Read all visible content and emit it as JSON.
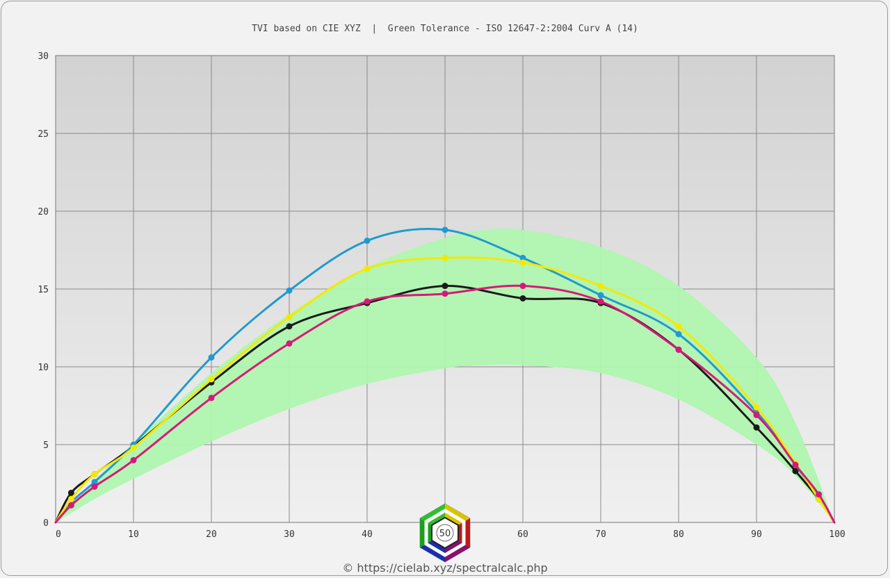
{
  "chart_data": {
    "type": "line",
    "title": "TVI based on CIE XYZ  |  Green Tolerance - ISO 12647-2:2004 Curv A (14)",
    "xlabel": "",
    "ylabel": "",
    "xlim": [
      0,
      100
    ],
    "ylim": [
      0,
      30
    ],
    "x_ticks": [
      "0",
      "10",
      "20",
      "30",
      "40",
      "50",
      "60",
      "70",
      "80",
      "90",
      "100"
    ],
    "y_ticks": [
      "0",
      "5",
      "10",
      "15",
      "20",
      "25",
      "30"
    ],
    "x_tick_values": [
      0,
      10,
      20,
      30,
      40,
      50,
      60,
      70,
      80,
      90,
      100
    ],
    "y_tick_values": [
      0,
      5,
      10,
      15,
      20,
      25,
      30
    ],
    "grid": true,
    "tolerance_band": {
      "color": "#b0f5b0",
      "upper": [
        [
          0,
          0
        ],
        [
          5,
          2.7
        ],
        [
          10,
          5.1
        ],
        [
          20,
          9.6
        ],
        [
          30,
          13.4
        ],
        [
          40,
          16.4
        ],
        [
          50,
          18.3
        ],
        [
          55,
          18.8
        ],
        [
          60,
          18.8
        ],
        [
          70,
          17.7
        ],
        [
          80,
          15.2
        ],
        [
          90,
          10.6
        ],
        [
          95,
          6.4
        ],
        [
          100,
          0
        ]
      ],
      "lower": [
        [
          0,
          0
        ],
        [
          5,
          1.5
        ],
        [
          10,
          2.8
        ],
        [
          20,
          5.2
        ],
        [
          30,
          7.3
        ],
        [
          40,
          8.9
        ],
        [
          50,
          9.9
        ],
        [
          55,
          10.1
        ],
        [
          60,
          10.1
        ],
        [
          70,
          9.6
        ],
        [
          80,
          7.9
        ],
        [
          90,
          5.0
        ],
        [
          95,
          3.0
        ],
        [
          100,
          0
        ]
      ]
    },
    "series": [
      {
        "color": "#1a1a1a",
        "x": [
          0,
          2,
          5,
          10,
          20,
          30,
          40,
          50,
          60,
          70,
          80,
          90,
          95,
          98,
          100
        ],
        "values": [
          0,
          1.9,
          3.1,
          4.9,
          9.0,
          12.6,
          14.1,
          15.2,
          14.4,
          14.1,
          11.1,
          6.1,
          3.3,
          1.5,
          0
        ]
      },
      {
        "color": "#1f9ad0",
        "x": [
          0,
          2,
          5,
          10,
          20,
          30,
          40,
          50,
          60,
          70,
          80,
          90,
          95,
          98,
          100
        ],
        "values": [
          0,
          1.3,
          2.6,
          5.0,
          10.6,
          14.9,
          18.1,
          18.8,
          17.0,
          14.6,
          12.1,
          7.1,
          3.7,
          1.6,
          0
        ]
      },
      {
        "color": "#f5e800",
        "x": [
          0,
          2,
          5,
          10,
          20,
          30,
          40,
          50,
          60,
          70,
          80,
          90,
          95,
          98,
          100
        ],
        "values": [
          0,
          1.5,
          3.1,
          4.8,
          9.2,
          13.2,
          16.3,
          17.0,
          16.7,
          15.2,
          12.6,
          7.4,
          3.8,
          1.5,
          0
        ]
      },
      {
        "color": "#d6197a",
        "x": [
          0,
          2,
          5,
          10,
          20,
          30,
          40,
          50,
          60,
          70,
          80,
          90,
          95,
          98,
          100
        ],
        "values": [
          0,
          1.1,
          2.3,
          4.0,
          8.0,
          11.5,
          14.2,
          14.7,
          15.2,
          14.2,
          11.1,
          6.9,
          3.7,
          1.8,
          0
        ]
      }
    ],
    "logo_text": "50",
    "credit": "© https://cielab.xyz/spectralcalc.php"
  }
}
